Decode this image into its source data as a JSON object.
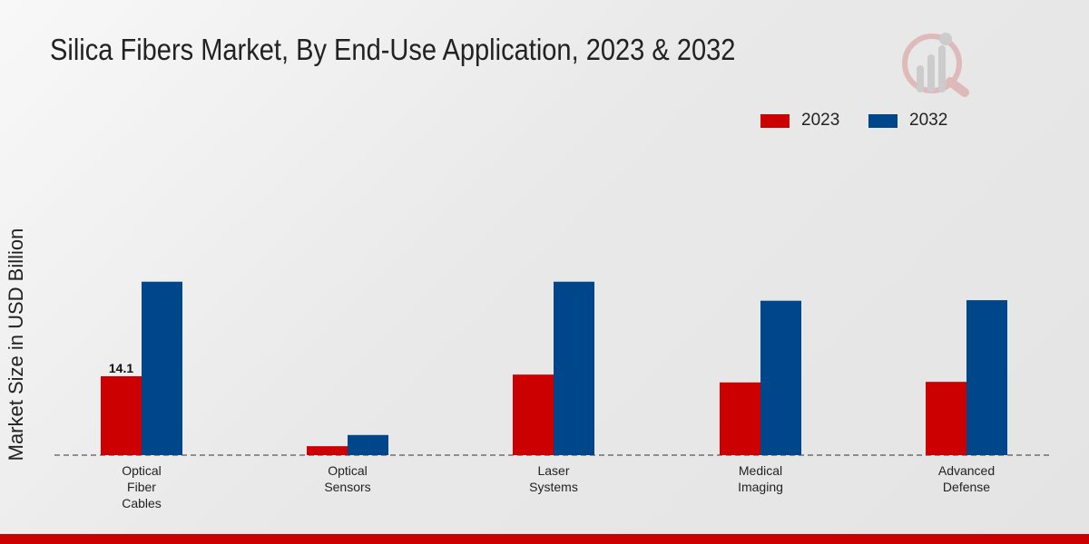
{
  "chart_data": {
    "type": "bar",
    "title": "Silica Fibers Market, By End-Use Application, 2023 & 2032",
    "xlabel": "",
    "ylabel": "Market Size in USD Billion",
    "categories": [
      [
        "Optical",
        "Fiber",
        "Cables"
      ],
      [
        "Optical",
        "Sensors"
      ],
      [
        "Laser",
        "Systems"
      ],
      [
        "Medical",
        "Imaging"
      ],
      [
        "Advanced",
        "Defense"
      ]
    ],
    "series": [
      {
        "name": "2023",
        "color": "#cc0000",
        "values": [
          14.1,
          1.6,
          14.4,
          13.0,
          13.1
        ]
      },
      {
        "name": "2032",
        "color": "#00468b",
        "values": [
          31.0,
          3.6,
          31.0,
          27.6,
          27.7
        ]
      }
    ],
    "data_labels": [
      {
        "series": 0,
        "index": 0,
        "text": "14.1"
      }
    ],
    "ylim": [
      0,
      48
    ],
    "grid": false,
    "legend": "top-right"
  }
}
